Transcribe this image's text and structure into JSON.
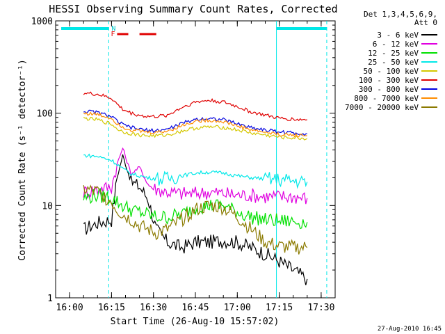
{
  "chart_data": {
    "type": "line",
    "title": "HESSI Observing Summary Count Rates, Corrected",
    "xlabel": "Start Time (26-Aug-10 15:57:02)",
    "ylabel": "Corrected Count Rate (s⁻¹ detector⁻¹)",
    "xlim": [
      "15:55",
      "17:35"
    ],
    "ylim": [
      1,
      1000
    ],
    "yscale": "log",
    "x_ticks": [
      "16:00",
      "16:15",
      "16:30",
      "16:45",
      "17:00",
      "17:15",
      "17:30"
    ],
    "y_ticks": [
      "1",
      "10",
      "100",
      "1000"
    ],
    "legend": {
      "placement": "outside-right",
      "header": [
        "Det 1,3,4,5,6,9,",
        "Att 0"
      ]
    },
    "footer": "27-Aug-2010 16:45",
    "series": [
      {
        "name": "3 - 6 keV",
        "color": "#000000",
        "x": [
          "16:05",
          "16:10",
          "16:15",
          "16:17",
          "16:19",
          "16:22",
          "16:25",
          "16:28",
          "16:31",
          "16:35",
          "16:40",
          "16:45",
          "16:50",
          "16:55",
          "17:00",
          "17:05",
          "17:10",
          "17:15",
          "17:20",
          "17:25"
        ],
        "values": [
          5.5,
          6.5,
          7,
          20,
          35,
          18,
          16,
          12,
          5.5,
          4,
          3.5,
          4,
          4,
          4.2,
          4,
          3.5,
          3,
          2.5,
          2,
          1.6
        ]
      },
      {
        "name": "6 - 12 keV",
        "color": "#e000e0",
        "x": [
          "16:05",
          "16:10",
          "16:15",
          "16:17",
          "16:19",
          "16:22",
          "16:25",
          "16:28",
          "16:31",
          "16:35",
          "16:40",
          "16:45",
          "16:50",
          "16:55",
          "17:00",
          "17:05",
          "17:10",
          "17:15",
          "17:20",
          "17:25"
        ],
        "values": [
          14,
          15,
          16,
          28,
          42,
          22,
          26,
          17,
          15,
          14,
          13.5,
          13.5,
          14,
          13.5,
          13,
          13,
          12.5,
          12.5,
          12.5,
          12
        ]
      },
      {
        "name": "12 - 25 keV",
        "color": "#00e000",
        "x": [
          "16:05",
          "16:10",
          "16:15",
          "16:17",
          "16:19",
          "16:22",
          "16:25",
          "16:28",
          "16:31",
          "16:35",
          "16:40",
          "16:45",
          "16:50",
          "16:55",
          "17:00",
          "17:05",
          "17:10",
          "17:15",
          "17:20",
          "17:25"
        ],
        "values": [
          12,
          13,
          12,
          11,
          10,
          9,
          8.5,
          8,
          7.5,
          7.5,
          8,
          9.5,
          10,
          10,
          8.5,
          7.5,
          7,
          6.8,
          6.7,
          6.6
        ]
      },
      {
        "name": "25 - 50 keV",
        "color": "#00e8e8",
        "x": [
          "16:05",
          "16:10",
          "16:15",
          "16:17",
          "16:19",
          "16:22",
          "16:25",
          "16:28",
          "16:31",
          "16:35",
          "16:40",
          "16:45",
          "16:50",
          "16:55",
          "17:00",
          "17:05",
          "17:10",
          "17:15",
          "17:20",
          "17:25"
        ],
        "values": [
          35,
          34,
          31,
          28,
          25,
          22,
          21,
          20,
          19.5,
          19.5,
          21,
          22.5,
          23,
          22.5,
          21,
          20,
          19.5,
          19,
          18.5,
          18
        ]
      },
      {
        "name": "50 - 100 keV",
        "color": "#d4c800",
        "x": [
          "16:05",
          "16:10",
          "16:15",
          "16:17",
          "16:19",
          "16:22",
          "16:25",
          "16:28",
          "16:31",
          "16:35",
          "16:40",
          "16:45",
          "16:50",
          "16:55",
          "17:00",
          "17:05",
          "17:10",
          "17:15",
          "17:20",
          "17:25"
        ],
        "values": [
          88,
          85,
          76,
          68,
          63,
          60,
          58,
          57,
          57,
          58,
          64,
          69,
          71,
          70,
          66,
          61,
          58,
          55,
          54,
          53
        ]
      },
      {
        "name": "100 - 300 keV",
        "color": "#e00000",
        "x": [
          "16:05",
          "16:10",
          "16:15",
          "16:17",
          "16:19",
          "16:22",
          "16:25",
          "16:28",
          "16:31",
          "16:35",
          "16:40",
          "16:45",
          "16:50",
          "16:55",
          "17:00",
          "17:05",
          "17:10",
          "17:15",
          "17:20",
          "17:25"
        ],
        "values": [
          165,
          160,
          145,
          125,
          110,
          100,
          95,
          92,
          92,
          95,
          115,
          132,
          138,
          132,
          118,
          103,
          95,
          88,
          86,
          85
        ]
      },
      {
        "name": "300 - 800 keV",
        "color": "#0000e0",
        "x": [
          "16:05",
          "16:10",
          "16:15",
          "16:17",
          "16:19",
          "16:22",
          "16:25",
          "16:28",
          "16:31",
          "16:35",
          "16:40",
          "16:45",
          "16:50",
          "16:55",
          "17:00",
          "17:05",
          "17:10",
          "17:15",
          "17:20",
          "17:25"
        ],
        "values": [
          105,
          102,
          92,
          82,
          75,
          70,
          67,
          65,
          65,
          67,
          77,
          86,
          88,
          85,
          77,
          70,
          66,
          63,
          61,
          60
        ]
      },
      {
        "name": "800 - 7000 keV",
        "color": "#ff8c00",
        "x": [
          "16:05",
          "16:10",
          "16:15",
          "16:17",
          "16:19",
          "16:22",
          "16:25",
          "16:28",
          "16:31",
          "16:35",
          "16:40",
          "16:45",
          "16:50",
          "16:55",
          "17:00",
          "17:05",
          "17:10",
          "17:15",
          "17:20",
          "17:25"
        ],
        "values": [
          100,
          97,
          88,
          78,
          71,
          66,
          64,
          62,
          62,
          64,
          73,
          82,
          84,
          81,
          73,
          66,
          62,
          59,
          58,
          57
        ]
      },
      {
        "name": "7000 - 20000 keV",
        "color": "#8b7a00",
        "x": [
          "16:05",
          "16:10",
          "16:15",
          "16:17",
          "16:19",
          "16:22",
          "16:25",
          "16:28",
          "16:31",
          "16:35",
          "16:40",
          "16:45",
          "16:50",
          "16:55",
          "17:00",
          "17:05",
          "17:10",
          "17:15",
          "17:20",
          "17:25"
        ],
        "values": [
          15,
          14,
          11,
          9,
          8,
          7,
          6,
          5.5,
          5,
          5.5,
          7,
          9,
          10,
          9.5,
          7.5,
          5.5,
          4,
          3.6,
          3.5,
          3.5
        ]
      }
    ],
    "annotations": {
      "flag_labels": [
        "N",
        "F"
      ],
      "night_intervals": [
        [
          "15:57",
          "16:14"
        ],
        [
          "17:14",
          "17:32"
        ]
      ],
      "flare_intervals": [
        [
          "16:17",
          "16:21"
        ],
        [
          "16:25",
          "16:31"
        ]
      ],
      "dashed_verticals": [
        "16:14",
        "17:32"
      ],
      "solid_verticals": [
        "17:14"
      ]
    }
  }
}
